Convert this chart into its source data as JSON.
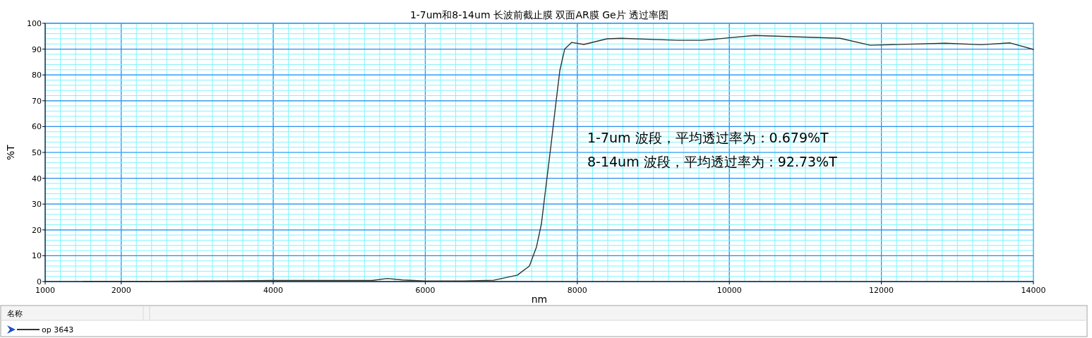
{
  "chart_data": {
    "type": "line",
    "title": "1-7um和8-14um 长波前截止膜 双面AR膜 Ge片 透过率图",
    "xlabel": "nm",
    "ylabel": "%T",
    "xlim": [
      1000,
      14000
    ],
    "xticks": [
      1000,
      2000,
      4000,
      6000,
      8000,
      10000,
      12000,
      14000
    ],
    "ylim": [
      0,
      100
    ],
    "yticks": [
      0,
      10,
      20,
      30,
      40,
      50,
      60,
      70,
      80,
      90,
      100
    ],
    "grid": true,
    "legend": "bottom",
    "legend_title": "名称",
    "line_style": "solid",
    "annotations": [
      "1-7um 波段，平均透过率为：0.679%T",
      "8-14um 波段，平均透过率为：92.73%T"
    ],
    "series": [
      {
        "name": "op 3643",
        "color": "#333333",
        "x": [
          1500,
          2000,
          2500,
          3000,
          3500,
          4000,
          4500,
          5000,
          5300,
          5500,
          5700,
          6000,
          6500,
          6900,
          7212,
          7370,
          7463,
          7528,
          7584,
          7649,
          7714,
          7770,
          7834,
          7927,
          8085,
          8391,
          8577,
          9320,
          9636,
          10332,
          11456,
          11855,
          12840,
          13313,
          13693,
          14000
        ],
        "values": [
          0.1,
          0.1,
          0.1,
          0.2,
          0.3,
          0.4,
          0.4,
          0.4,
          0.4,
          1.2,
          0.6,
          0.2,
          0.2,
          0.5,
          2.5,
          6,
          13.4,
          22.4,
          36,
          51.6,
          68,
          81.7,
          90,
          92.6,
          91.8,
          94,
          94.2,
          93.4,
          93.4,
          95.3,
          94.2,
          91.5,
          92.3,
          91.7,
          92.4,
          89.9
        ]
      }
    ]
  }
}
